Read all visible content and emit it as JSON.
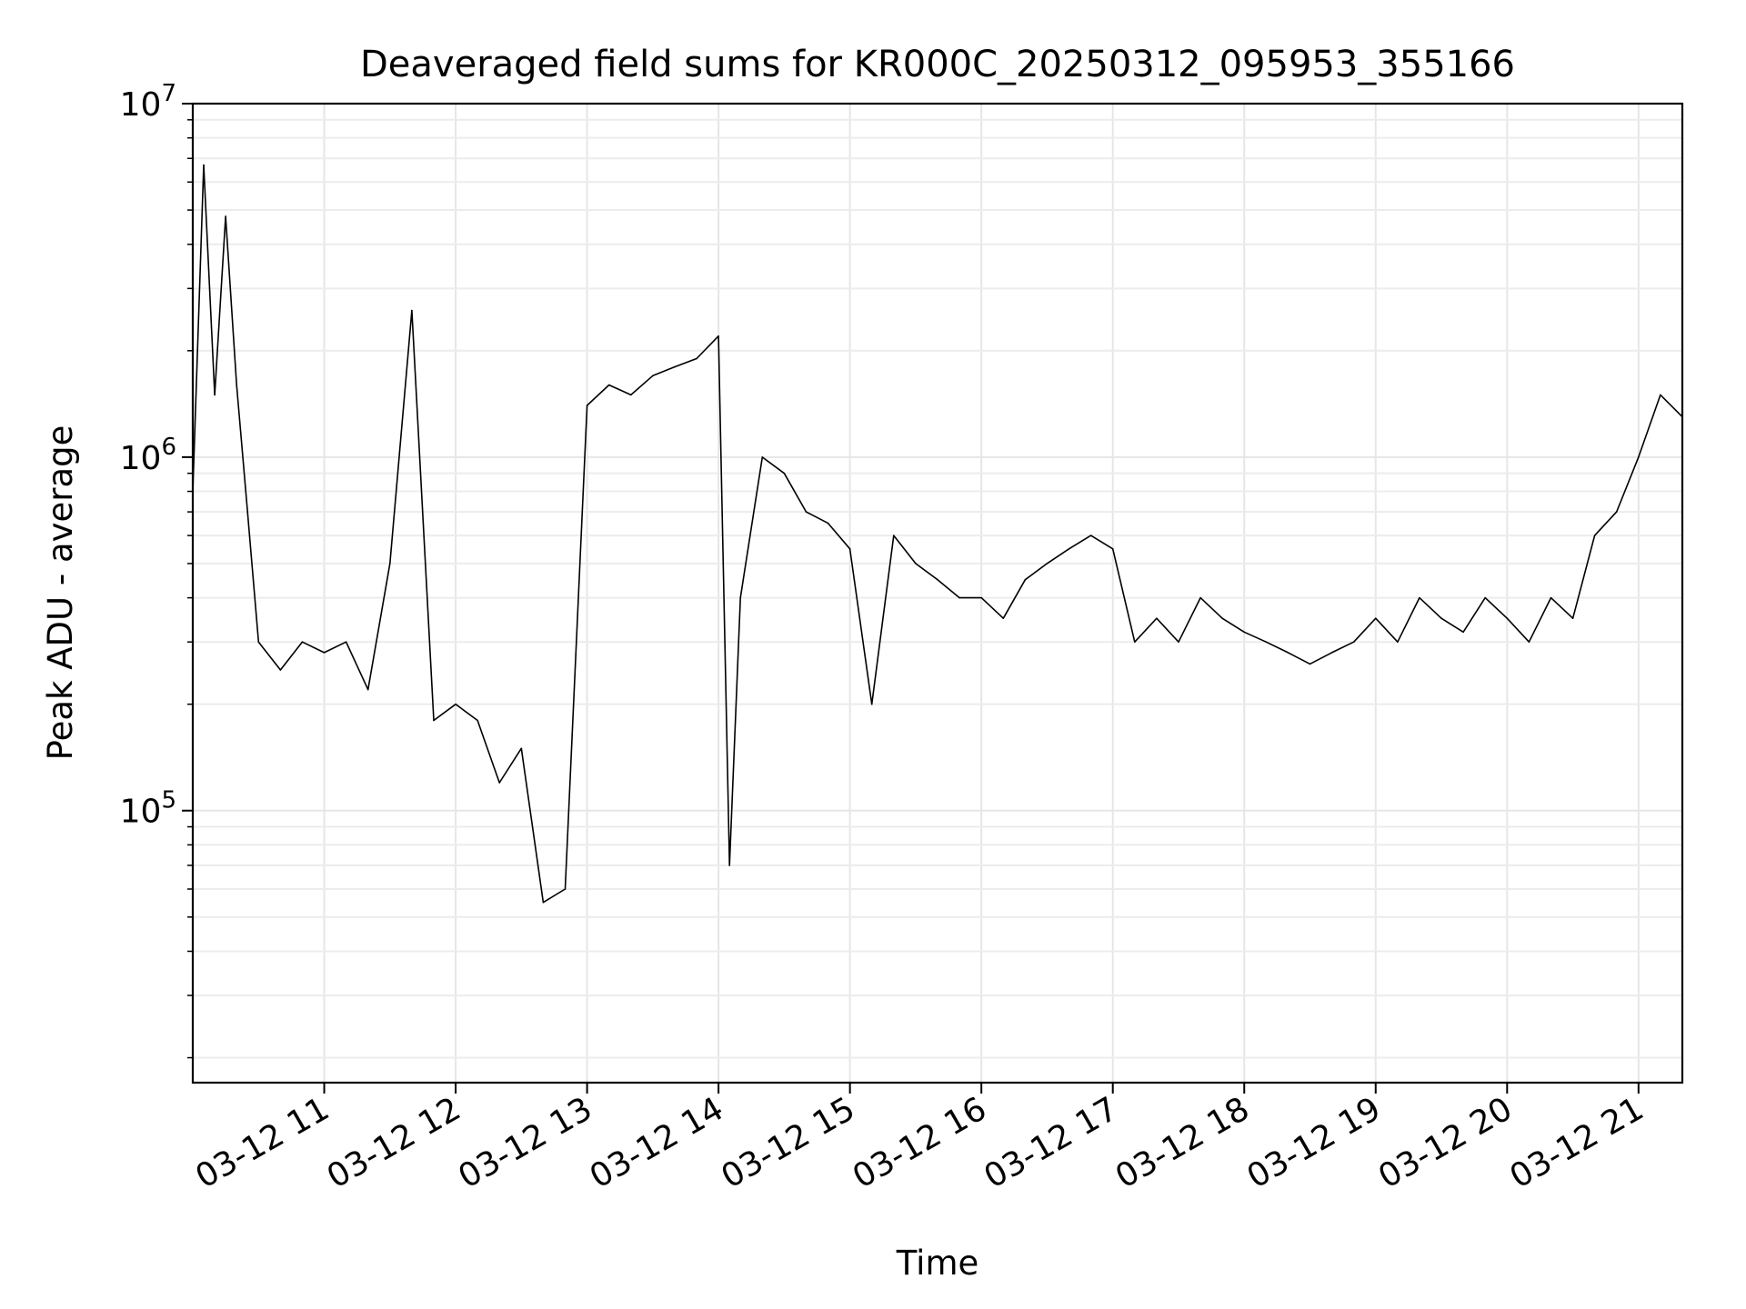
{
  "chart_data": {
    "type": "line",
    "title": "Deaveraged field sums for KR000C_20250312_095953_355166",
    "xlabel": "Time",
    "ylabel": "Peak ADU - average",
    "yscale": "log",
    "xlim": [
      "2025-03-12 10:00",
      "2025-03-12 21:20"
    ],
    "ylim": [
      17000,
      10000000
    ],
    "grid": true,
    "line_color": "#000000",
    "x_ticks": [
      "03-12 11",
      "03-12 12",
      "03-12 13",
      "03-12 14",
      "03-12 15",
      "03-12 16",
      "03-12 17",
      "03-12 18",
      "03-12 19",
      "03-12 20",
      "03-12 21"
    ],
    "y_ticks": [
      {
        "base": "10",
        "exp": "5",
        "value": 100000
      },
      {
        "base": "10",
        "exp": "6",
        "value": 1000000
      },
      {
        "base": "10",
        "exp": "7",
        "value": 10000000
      }
    ],
    "series": [
      {
        "x": [
          "2025-03-12 10:00",
          "2025-03-12 10:05",
          "2025-03-12 10:10",
          "2025-03-12 10:15",
          "2025-03-12 10:20",
          "2025-03-12 10:25",
          "2025-03-12 10:30",
          "2025-03-12 10:40",
          "2025-03-12 10:50",
          "2025-03-12 11:00",
          "2025-03-12 11:10",
          "2025-03-12 11:20",
          "2025-03-12 11:30",
          "2025-03-12 11:40",
          "2025-03-12 11:50",
          "2025-03-12 12:00",
          "2025-03-12 12:10",
          "2025-03-12 12:20",
          "2025-03-12 12:30",
          "2025-03-12 12:40",
          "2025-03-12 12:50",
          "2025-03-12 13:00",
          "2025-03-12 13:10",
          "2025-03-12 13:20",
          "2025-03-12 13:30",
          "2025-03-12 13:40",
          "2025-03-12 13:50",
          "2025-03-12 14:00",
          "2025-03-12 14:05",
          "2025-03-12 14:10",
          "2025-03-12 14:20",
          "2025-03-12 14:30",
          "2025-03-12 14:40",
          "2025-03-12 14:50",
          "2025-03-12 15:00",
          "2025-03-12 15:10",
          "2025-03-12 15:20",
          "2025-03-12 15:30",
          "2025-03-12 15:40",
          "2025-03-12 15:50",
          "2025-03-12 16:00",
          "2025-03-12 16:10",
          "2025-03-12 16:20",
          "2025-03-12 16:30",
          "2025-03-12 16:40",
          "2025-03-12 16:50",
          "2025-03-12 17:00",
          "2025-03-12 17:10",
          "2025-03-12 17:20",
          "2025-03-12 17:30",
          "2025-03-12 17:40",
          "2025-03-12 17:50",
          "2025-03-12 18:00",
          "2025-03-12 18:10",
          "2025-03-12 18:20",
          "2025-03-12 18:30",
          "2025-03-12 18:40",
          "2025-03-12 18:50",
          "2025-03-12 19:00",
          "2025-03-12 19:10",
          "2025-03-12 19:20",
          "2025-03-12 19:30",
          "2025-03-12 19:40",
          "2025-03-12 19:50",
          "2025-03-12 20:00",
          "2025-03-12 20:10",
          "2025-03-12 20:20",
          "2025-03-12 20:30",
          "2025-03-12 20:40",
          "2025-03-12 20:50",
          "2025-03-12 21:00",
          "2025-03-12 21:10",
          "2025-03-12 21:20"
        ],
        "y": [
          800000,
          6700000,
          1500000,
          4800000,
          1600000,
          700000,
          300000,
          250000,
          300000,
          280000,
          300000,
          220000,
          500000,
          2600000,
          180000,
          200000,
          180000,
          120000,
          150000,
          55000,
          60000,
          1400000,
          1600000,
          1500000,
          1700000,
          1800000,
          1900000,
          2200000,
          70000,
          400000,
          1000000,
          900000,
          700000,
          650000,
          550000,
          200000,
          600000,
          500000,
          450000,
          400000,
          400000,
          350000,
          450000,
          500000,
          550000,
          600000,
          550000,
          300000,
          350000,
          300000,
          400000,
          350000,
          320000,
          300000,
          280000,
          260000,
          280000,
          300000,
          350000,
          300000,
          400000,
          350000,
          320000,
          400000,
          350000,
          300000,
          400000,
          350000,
          600000,
          700000,
          1000000,
          1500000,
          1300000
        ]
      }
    ]
  }
}
